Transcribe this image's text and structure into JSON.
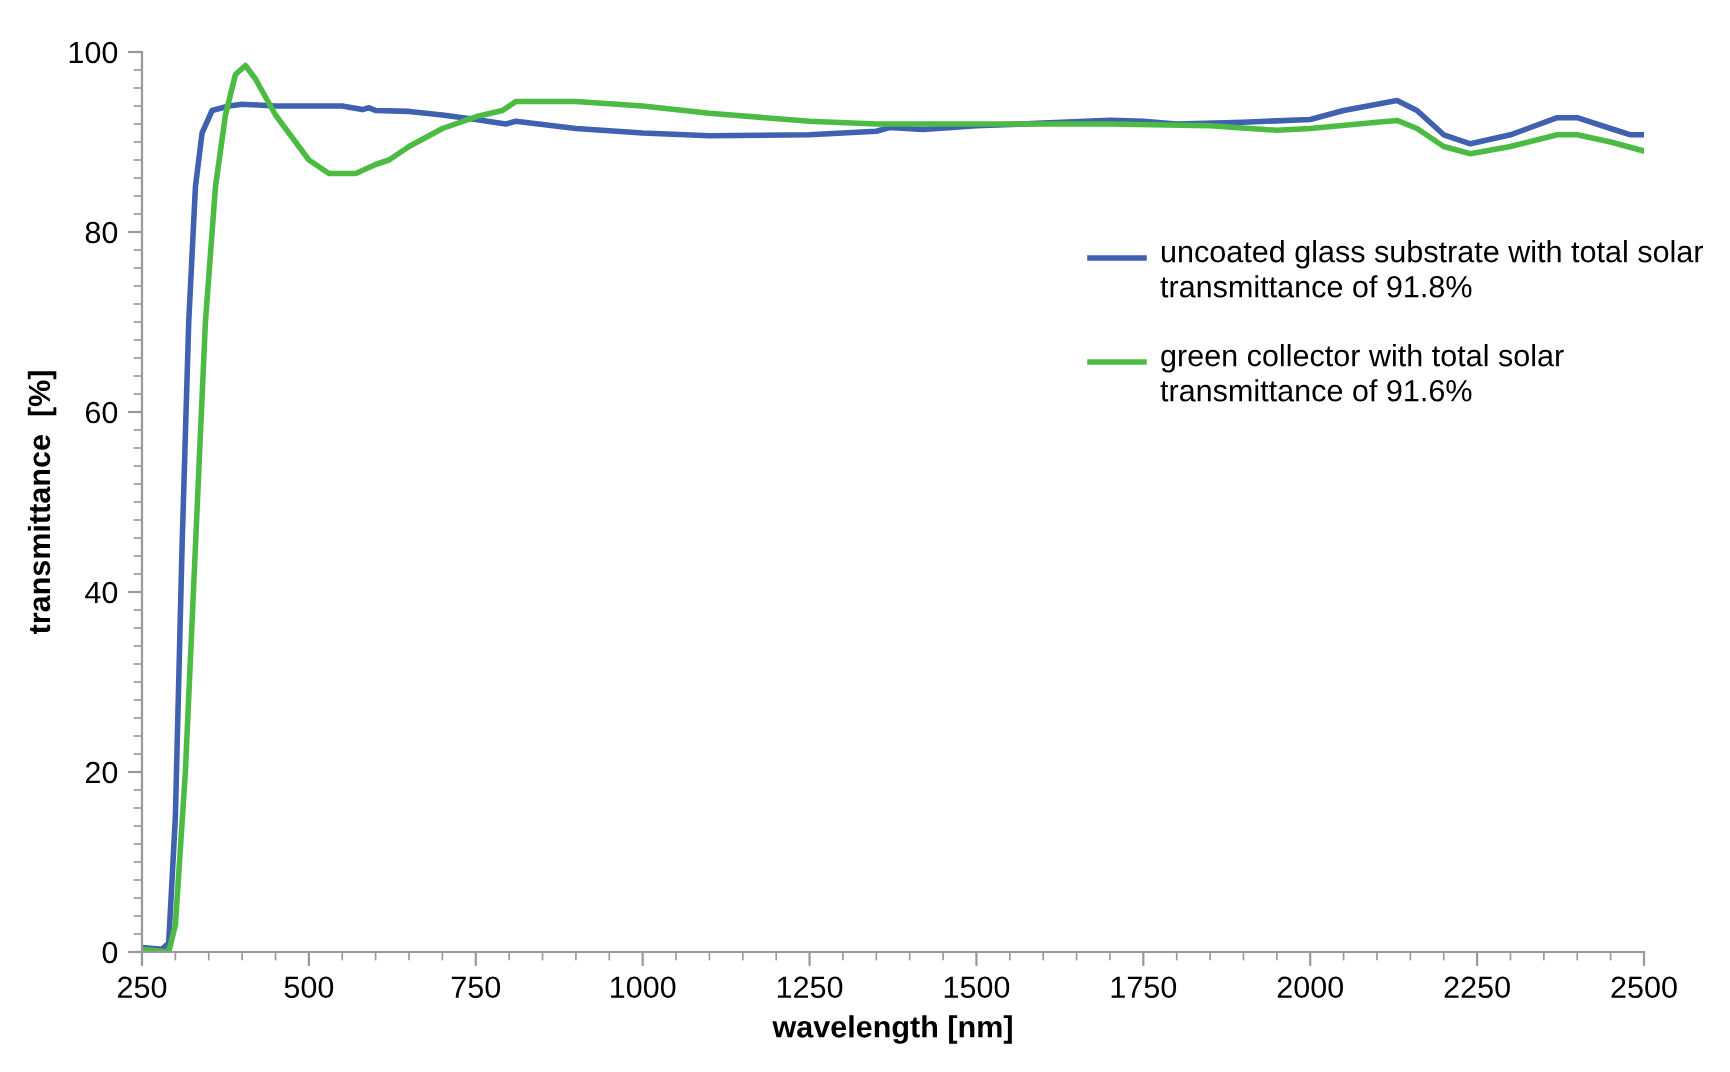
{
  "chart_data": {
    "type": "line",
    "xlabel": "wavelength [nm]",
    "ylabel": "transmittance  [%]",
    "xlim": [
      250,
      2500
    ],
    "xticks": [
      250,
      500,
      750,
      1000,
      1250,
      1500,
      1750,
      2000,
      2250,
      2500
    ],
    "ylim": [
      0,
      100
    ],
    "yticks": [
      0,
      20,
      40,
      60,
      80,
      100
    ],
    "grid": false,
    "legend": "right",
    "marker": "none",
    "line_style": "solid",
    "series": [
      {
        "name": "uncoated glass substrate with total solar transmittance of 91.8%",
        "color": "#4060b0",
        "x": [
          250,
          280,
          290,
          300,
          310,
          320,
          330,
          340,
          355,
          380,
          400,
          450,
          550,
          580,
          590,
          600,
          650,
          700,
          750,
          795,
          810,
          900,
          1000,
          1100,
          1250,
          1350,
          1370,
          1420,
          1500,
          1600,
          1700,
          1750,
          1800,
          1900,
          2000,
          2050,
          2100,
          2130,
          2160,
          2200,
          2240,
          2300,
          2370,
          2400,
          2450,
          2480,
          2500
        ],
        "values": [
          0.5,
          0.3,
          1,
          15,
          45,
          70,
          85,
          91,
          93.5,
          94,
          94.2,
          94,
          94,
          93.6,
          93.8,
          93.5,
          93.4,
          93,
          92.5,
          92,
          92.3,
          91.5,
          91,
          90.7,
          90.8,
          91.2,
          91.6,
          91.4,
          91.8,
          92.1,
          92.4,
          92.3,
          92,
          92.2,
          92.5,
          93.5,
          94.2,
          94.6,
          93.5,
          90.8,
          89.8,
          90.8,
          92.7,
          92.7,
          91.5,
          90.8,
          90.8
        ]
      },
      {
        "name": "green collector with total solar transmittance of 91.6%",
        "color": "#4cbb44",
        "x": [
          250,
          290,
          300,
          315,
          330,
          345,
          360,
          375,
          390,
          405,
          420,
          450,
          500,
          530,
          570,
          600,
          620,
          650,
          700,
          750,
          790,
          810,
          900,
          1000,
          1100,
          1250,
          1350,
          1400,
          1500,
          1700,
          1850,
          1950,
          2000,
          2100,
          2130,
          2160,
          2200,
          2240,
          2300,
          2370,
          2400,
          2450,
          2500
        ],
        "values": [
          0.3,
          0,
          3,
          20,
          45,
          70,
          85,
          93,
          97.5,
          98.5,
          97,
          93,
          88,
          86.5,
          86.5,
          87.5,
          88,
          89.5,
          91.5,
          92.8,
          93.5,
          94.5,
          94.5,
          94,
          93.2,
          92.3,
          92,
          92,
          92,
          92,
          91.8,
          91.3,
          91.5,
          92.2,
          92.4,
          91.5,
          89.5,
          88.7,
          89.5,
          90.8,
          90.8,
          90,
          89
        ]
      }
    ]
  }
}
